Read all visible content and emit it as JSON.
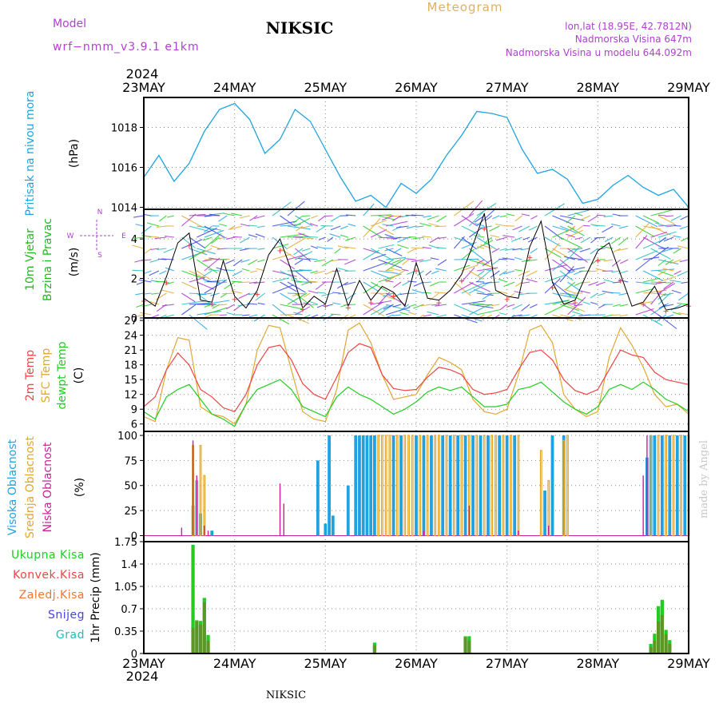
{
  "header": {
    "model_label": "Model",
    "model_name": "wrf−nmm_v3.9.1  e1km",
    "station": "NIKSIC",
    "meteogram": "Meteogram",
    "lonlat": "lon,lat (18.95E, 42.7812N)",
    "altitude": "Nadmorska Visina 647m",
    "model_altitude": "Nadmorska Visina u modelu 644.092m",
    "credit": "made by Angel",
    "footer_station": "NIKSIC"
  },
  "colors": {
    "pressure": "#1fa3e0",
    "wind_label": "#22b822",
    "tair": "#ee4444",
    "tsfc": "#e0a830",
    "dewpt": "#22cc22",
    "cloud_high": "#1fa3e0",
    "cloud_mid": "#e0a830",
    "cloud_low": "#cc2299",
    "precip_total": "#22cc22",
    "precip_conv": "#ee4444",
    "precip_frozen": "#ee7733",
    "snow": "#4444dd",
    "hail": "#22bbbb",
    "header_purple": "#b040d0",
    "meteogram": "#e0b060"
  },
  "time_axis": {
    "year": "2024",
    "labels": [
      "23MAY",
      "24MAY",
      "25MAY",
      "26MAY",
      "27MAY",
      "28MAY",
      "29MAY"
    ]
  },
  "panels": {
    "pressure": {
      "title": "Pritisak na nivou mora",
      "unit": "(hPa)",
      "ticks": [
        "1014",
        "1016",
        "1018"
      ]
    },
    "wind": {
      "title1": "10m Vjetar",
      "title2": "Brzina i Pravac",
      "unit": "(m/s)",
      "ticks": [
        "0",
        "2",
        "4"
      ],
      "compass_w": "W",
      "compass_e": "E",
      "compass_n": "N",
      "compass_s": "S"
    },
    "temp": {
      "t1": "2m Temp",
      "t2": "SFC Temp",
      "t3": "dewpt Temp",
      "unit": "(C)",
      "ticks": [
        "6",
        "9",
        "12",
        "15",
        "18",
        "21",
        "24",
        "27"
      ]
    },
    "cloud": {
      "t1": "Visoka Oblacnost",
      "t2": "Srednja Oblacnost",
      "t3": "Niska Oblacnost",
      "unit": "(%)",
      "ticks": [
        "0",
        "25",
        "50",
        "75",
        "100"
      ]
    },
    "precip": {
      "legend": [
        "Ukupna Kisa",
        "Konvek.Kisa",
        "Zaledj.Kisa",
        "Snijeg",
        "Grad"
      ],
      "unit": "1hr Precip (mm)",
      "ticks": [
        "0",
        "0.35",
        "0.7",
        "1.05",
        "1.4",
        "1.75"
      ]
    }
  },
  "chart_data": [
    {
      "type": "line",
      "title": "Pritisak na nivou mora",
      "ylabel": "(hPa)",
      "ylim": [
        1013.9,
        1019.5
      ],
      "x_unit": "hours since 23MAY 00",
      "series": [
        {
          "x": [
            0,
            4,
            8,
            12,
            16,
            20,
            24,
            28,
            32,
            36,
            40,
            44,
            48,
            52,
            56,
            60,
            64,
            68,
            72,
            76,
            80,
            84,
            88,
            92,
            96,
            100,
            104,
            108,
            112,
            116,
            120,
            124,
            128,
            132,
            136,
            140,
            144
          ],
          "values": [
            1015.5,
            1016.6,
            1015.3,
            1016.2,
            1017.8,
            1018.9,
            1019.2,
            1018.4,
            1016.7,
            1017.4,
            1018.9,
            1018.3,
            1016.9,
            1015.5,
            1014.3,
            1014.6,
            1014.0,
            1015.2,
            1014.7,
            1015.4,
            1016.6,
            1017.6,
            1018.8,
            1018.7,
            1018.5,
            1016.9,
            1015.7,
            1015.9,
            1015.4,
            1014.2,
            1014.4,
            1015.1,
            1015.6,
            1015.0,
            1014.6,
            1014.9,
            1014.0
          ]
        }
      ]
    },
    {
      "type": "line",
      "title": "10m Vjetar Brzina i Pravac",
      "ylabel": "(m/s)",
      "ylim": [
        0,
        5.5
      ],
      "x_unit": "hours since 23MAY 00",
      "series": [
        {
          "x": [
            0,
            3,
            6,
            9,
            12,
            15,
            18,
            21,
            24,
            27,
            30,
            33,
            36,
            39,
            42,
            45,
            48,
            51,
            54,
            57,
            60,
            63,
            66,
            69,
            72,
            75,
            78,
            81,
            84,
            87,
            90,
            93,
            96,
            99,
            102,
            105,
            108,
            111,
            114,
            117,
            120,
            123,
            126,
            129,
            132,
            135,
            138,
            141,
            144
          ],
          "values": [
            1.0,
            0.6,
            2.1,
            3.8,
            4.3,
            0.9,
            0.8,
            2.9,
            1.1,
            0.5,
            1.4,
            3.2,
            4.0,
            2.4,
            0.5,
            1.1,
            0.7,
            2.5,
            0.6,
            1.9,
            0.9,
            1.6,
            1.3,
            0.6,
            2.8,
            1.0,
            0.9,
            1.4,
            2.2,
            3.7,
            5.3,
            1.4,
            1.1,
            1.0,
            3.6,
            4.9,
            1.8,
            0.7,
            0.9,
            2.2,
            3.4,
            3.8,
            2.2,
            0.6,
            0.8,
            1.6,
            0.4,
            0.5,
            0.7
          ]
        }
      ]
    },
    {
      "type": "line",
      "title": "2m Temp / SFC Temp / dewpt Temp",
      "ylabel": "(C)",
      "ylim": [
        4.5,
        27.5
      ],
      "x_unit": "hours since 23MAY 00",
      "series": [
        {
          "name": "2m Temp",
          "x": [
            0,
            3,
            6,
            9,
            12,
            15,
            18,
            21,
            24,
            27,
            30,
            33,
            36,
            39,
            42,
            45,
            48,
            51,
            54,
            57,
            60,
            63,
            66,
            69,
            72,
            75,
            78,
            81,
            84,
            87,
            90,
            93,
            96,
            99,
            102,
            105,
            108,
            111,
            114,
            117,
            120,
            123,
            126,
            129,
            132,
            135,
            138,
            141,
            144
          ],
          "values": [
            9.5,
            11.5,
            17.0,
            20.4,
            18.0,
            13.0,
            11.5,
            9.3,
            8.5,
            12.0,
            18.0,
            21.5,
            22.0,
            19.0,
            14.2,
            12.0,
            11.0,
            15.5,
            20.5,
            22.3,
            21.5,
            16.0,
            13.2,
            12.8,
            13.0,
            15.5,
            17.5,
            17.0,
            16.0,
            13.0,
            12.0,
            12.3,
            13.0,
            17.0,
            20.5,
            21.0,
            19.0,
            15.0,
            12.8,
            12.0,
            13.0,
            17.0,
            21.0,
            20.0,
            19.5,
            16.5,
            15.0,
            14.5,
            14.0
          ]
        },
        {
          "name": "SFC Temp",
          "x": [
            0,
            3,
            6,
            9,
            12,
            15,
            18,
            21,
            24,
            27,
            30,
            33,
            36,
            39,
            42,
            45,
            48,
            51,
            54,
            57,
            60,
            63,
            66,
            69,
            72,
            75,
            78,
            81,
            84,
            87,
            90,
            93,
            96,
            99,
            102,
            105,
            108,
            111,
            114,
            117,
            120,
            123,
            126,
            129,
            132,
            135,
            138,
            141,
            144
          ],
          "values": [
            7.5,
            6.5,
            17.0,
            23.5,
            23.0,
            9.5,
            8.0,
            7.5,
            6.0,
            10.0,
            21.0,
            26.0,
            25.5,
            17.0,
            8.5,
            7.0,
            6.5,
            13.0,
            25.0,
            26.5,
            22.5,
            16.0,
            11.0,
            11.5,
            12.0,
            16.0,
            19.5,
            18.5,
            17.0,
            11.0,
            8.5,
            8.0,
            9.0,
            16.0,
            25.0,
            26.0,
            22.5,
            12.0,
            9.0,
            7.5,
            8.5,
            19.5,
            25.5,
            22.0,
            17.5,
            12.0,
            9.5,
            10.0,
            8.0
          ]
        },
        {
          "name": "dewpt Temp",
          "x": [
            0,
            3,
            6,
            9,
            12,
            15,
            18,
            21,
            24,
            27,
            30,
            33,
            36,
            39,
            42,
            45,
            48,
            51,
            54,
            57,
            60,
            63,
            66,
            69,
            72,
            75,
            78,
            81,
            84,
            87,
            90,
            93,
            96,
            99,
            102,
            105,
            108,
            111,
            114,
            117,
            120,
            123,
            126,
            129,
            132,
            135,
            138,
            141,
            144
          ],
          "values": [
            8.5,
            7.0,
            11.5,
            13.0,
            14.0,
            11.0,
            8.0,
            7.0,
            5.5,
            10.0,
            13.0,
            14.0,
            15.0,
            13.0,
            9.5,
            8.5,
            7.5,
            11.5,
            13.5,
            12.0,
            11.0,
            9.5,
            8.0,
            9.0,
            10.5,
            12.5,
            13.5,
            12.8,
            13.5,
            11.5,
            9.5,
            9.5,
            10.0,
            13.0,
            13.5,
            14.5,
            12.5,
            10.5,
            9.0,
            8.0,
            9.5,
            13.0,
            14.0,
            13.0,
            14.5,
            13.0,
            11.0,
            10.0,
            8.5
          ]
        }
      ]
    },
    {
      "type": "bar",
      "title": "Visoka / Srednja / Niska Oblacnost",
      "ylabel": "(%)",
      "ylim": [
        0,
        100
      ],
      "x_unit": "hours since 23MAY 00",
      "series": [
        {
          "name": "Visoka Oblacnost",
          "x": [
            13,
            14,
            15,
            18,
            46,
            48,
            49,
            50,
            54,
            56,
            57,
            58,
            59,
            60,
            61,
            66,
            68,
            72,
            74,
            76,
            79,
            81,
            83,
            85,
            87,
            89,
            91,
            94,
            96,
            98,
            106,
            108,
            111,
            133,
            134,
            135,
            137,
            139,
            141,
            143
          ],
          "values": [
            30,
            55,
            22,
            5,
            75,
            12,
            100,
            20,
            50,
            100,
            100,
            100,
            100,
            100,
            100,
            100,
            100,
            100,
            100,
            100,
            100,
            100,
            100,
            100,
            100,
            100,
            100,
            100,
            100,
            100,
            45,
            100,
            100,
            78,
            100,
            100,
            100,
            100,
            100,
            100
          ]
        },
        {
          "name": "Srednja Oblacnost",
          "x": [
            13,
            14,
            15,
            16,
            62,
            63,
            64,
            65,
            67,
            69,
            70,
            71,
            73,
            75,
            77,
            78,
            80,
            82,
            84,
            86,
            88,
            90,
            92,
            93,
            95,
            97,
            99,
            105,
            107,
            111,
            112,
            134,
            136,
            138,
            140,
            142,
            144
          ],
          "values": [
            90,
            55,
            90,
            60,
            100,
            100,
            100,
            100,
            100,
            100,
            100,
            100,
            100,
            100,
            100,
            100,
            100,
            100,
            100,
            100,
            100,
            100,
            100,
            100,
            100,
            100,
            100,
            85,
            55,
            95,
            100,
            100,
            100,
            100,
            100,
            100,
            100
          ]
        },
        {
          "name": "Niska Oblacnost",
          "x": [
            10,
            13,
            14,
            16,
            17,
            36,
            37,
            74,
            86,
            99,
            107,
            132,
            133
          ],
          "values": [
            8,
            95,
            60,
            10,
            5,
            52,
            32,
            5,
            30,
            5,
            10,
            60,
            100
          ]
        }
      ]
    },
    {
      "type": "bar",
      "title": "1hr Precip",
      "ylabel": "1hr Precip (mm)",
      "ylim": [
        0,
        1.75
      ],
      "x_unit": "hours since 23MAY 00",
      "series": [
        {
          "name": "Ukupna Kisa",
          "x": [
            13,
            14,
            15,
            16,
            17,
            61,
            85,
            86,
            134,
            135,
            136,
            137,
            138,
            139
          ],
          "values": [
            1.7,
            0.52,
            0.51,
            0.87,
            0.29,
            0.17,
            0.27,
            0.27,
            0.15,
            0.31,
            0.74,
            0.84,
            0.37,
            0.21
          ]
        },
        {
          "name": "Konvek.Kisa",
          "x": [
            13,
            14,
            15,
            16,
            17,
            61,
            85,
            86,
            134,
            135,
            136,
            137,
            138,
            139
          ],
          "values": [
            0.4,
            0.5,
            0.45,
            0.8,
            0.2,
            0.12,
            0.25,
            0.2,
            0.1,
            0.2,
            0.5,
            0.6,
            0.3,
            0.15
          ]
        }
      ]
    }
  ]
}
